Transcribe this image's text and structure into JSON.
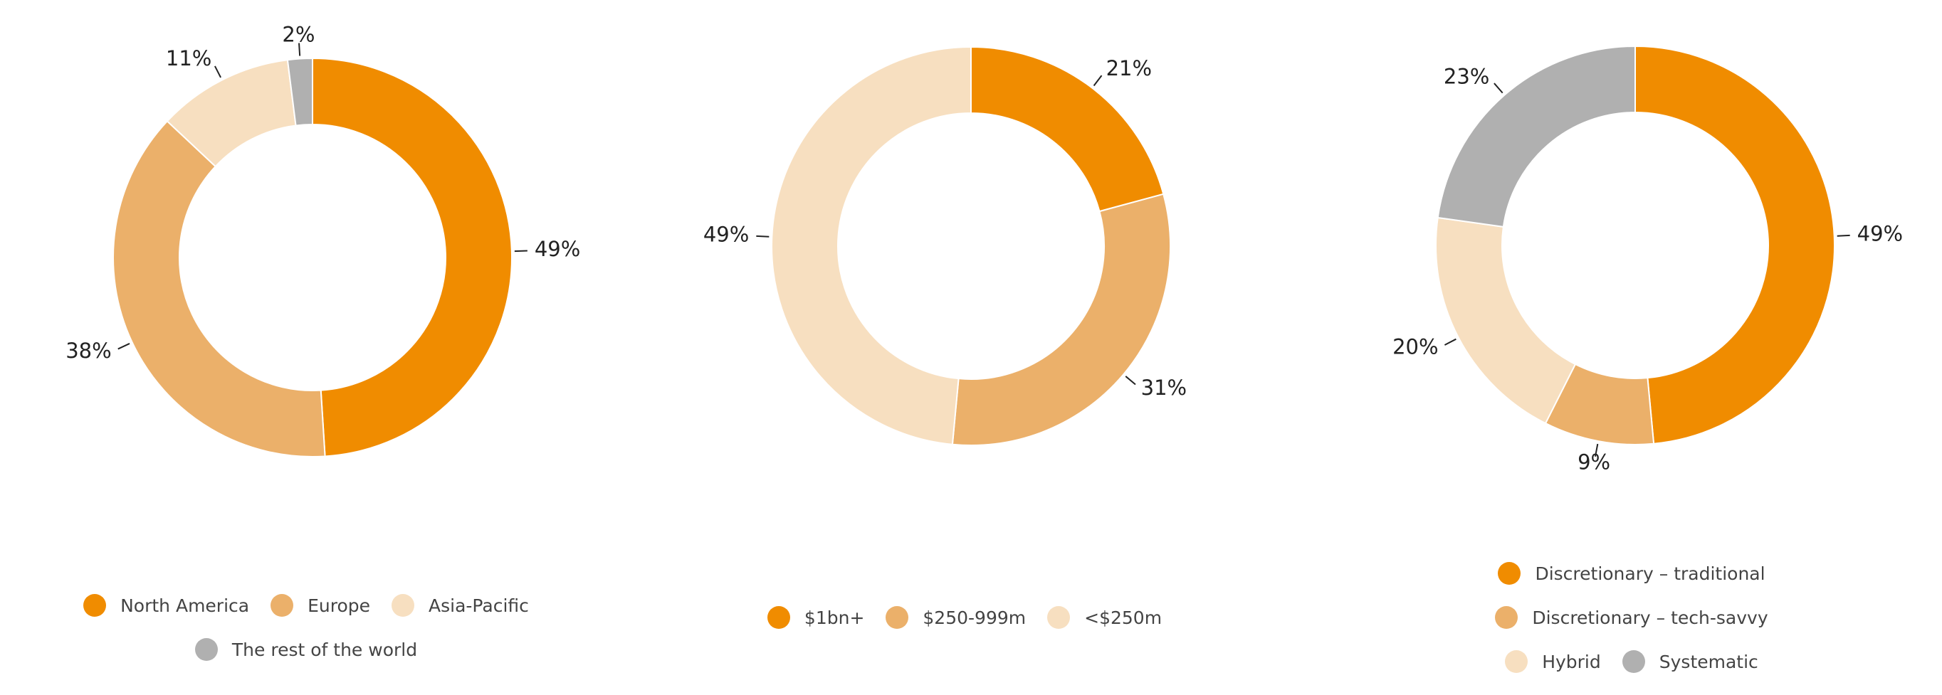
{
  "chart_data": [
    {
      "type": "pie",
      "categories": [
        "North America",
        "Europe",
        "Asia-Pacific",
        "The rest of the world"
      ],
      "values": [
        49,
        38,
        11,
        2
      ],
      "value_labels": [
        "49%",
        "38%",
        "11%",
        "2%"
      ],
      "colors": [
        "#f08c00",
        "#ebb06a",
        "#f7dfc0",
        "#b0b0b0"
      ]
    },
    {
      "type": "pie",
      "categories": [
        "$1bn+",
        "$250-999m",
        "<$250m"
      ],
      "values": [
        21,
        31,
        49
      ],
      "value_labels": [
        "21%",
        "31%",
        "49%"
      ],
      "colors": [
        "#f08c00",
        "#ebb06a",
        "#f7dfc0"
      ]
    },
    {
      "type": "pie",
      "categories": [
        "Discretionary – traditional",
        "Discretionary – tech-savvy",
        "Hybrid",
        "Systematic"
      ],
      "values": [
        49,
        9,
        20,
        23
      ],
      "value_labels": [
        "49%",
        "9%",
        "20%",
        "23%"
      ],
      "colors": [
        "#f08c00",
        "#ebb06a",
        "#f7dfc0",
        "#b0b0b0"
      ]
    }
  ]
}
